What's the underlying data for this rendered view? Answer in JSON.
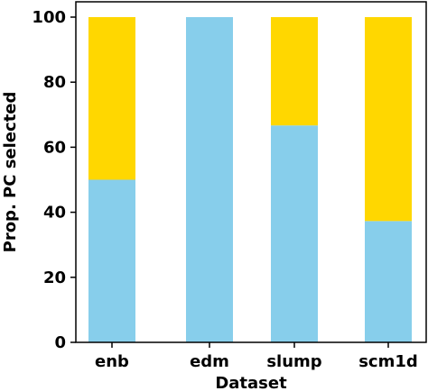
{
  "chart_data": {
    "type": "bar",
    "stacked": true,
    "xlabel": "Dataset",
    "ylabel": "Prop. PC selected",
    "ylim": [
      0,
      100
    ],
    "yticks": [
      "0",
      "20",
      "40",
      "60",
      "80",
      "100"
    ],
    "categories": [
      "enb",
      "edm",
      "slump",
      "scm1d"
    ],
    "series": [
      {
        "color": "#87ceeb",
        "values": [
          50,
          100,
          66.7,
          37.3
        ]
      },
      {
        "color": "#ffd700",
        "values": [
          50,
          0,
          33.3,
          62.7
        ]
      }
    ],
    "grid": false,
    "legend": "none"
  }
}
